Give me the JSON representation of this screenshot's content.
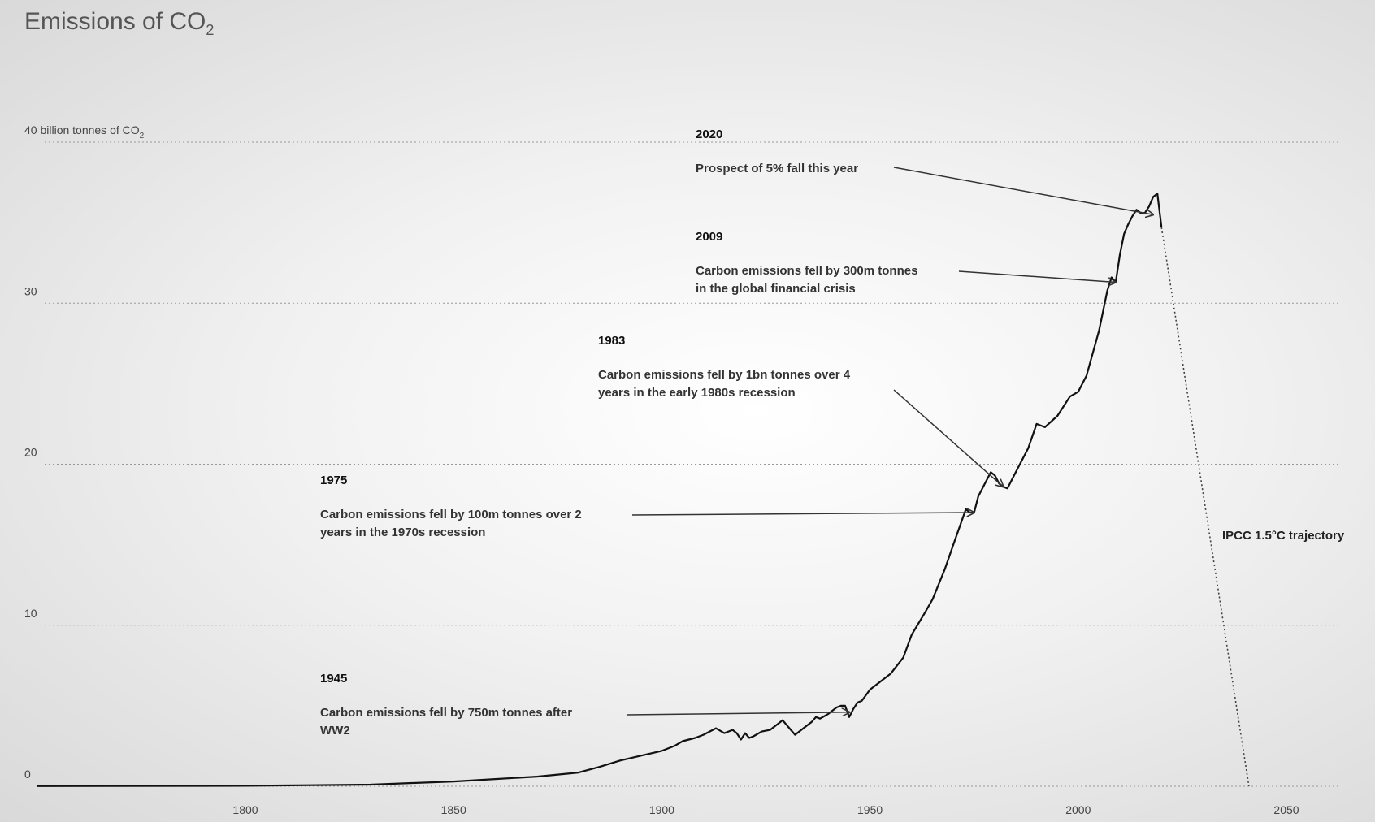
{
  "chart_data": {
    "type": "line",
    "title": "Emissions of CO",
    "title_sub": "2",
    "ylabel_top": "40 billion tonnes of CO",
    "ylabel_top_sub": "2",
    "ylim": [
      0,
      40
    ],
    "xlim": [
      1750,
      2065
    ],
    "grid": "horizontal dotted",
    "y_ticks": [
      {
        "value": 0,
        "label": "0"
      },
      {
        "value": 10,
        "label": "10"
      },
      {
        "value": 20,
        "label": "20"
      },
      {
        "value": 30,
        "label": "30"
      }
    ],
    "x_ticks": [
      {
        "value": 1800,
        "label": "1800"
      },
      {
        "value": 1850,
        "label": "1850"
      },
      {
        "value": 1900,
        "label": "1900"
      },
      {
        "value": 1950,
        "label": "1950"
      },
      {
        "value": 2000,
        "label": "2000"
      },
      {
        "value": 2050,
        "label": "2050"
      }
    ],
    "series": [
      {
        "x": [
          1750,
          1800,
          1830,
          1840,
          1850,
          1860,
          1870,
          1880,
          1885,
          1890,
          1895,
          1900,
          1903,
          1905,
          1908,
          1910,
          1913,
          1915,
          1917,
          1918,
          1919,
          1920,
          1921,
          1922,
          1924,
          1926,
          1928,
          1929,
          1930,
          1931,
          1932,
          1934,
          1936,
          1937,
          1938,
          1940,
          1941,
          1942,
          1943,
          1944,
          1945,
          1946,
          1947,
          1948,
          1950,
          1952,
          1955,
          1958,
          1960,
          1963,
          1965,
          1968,
          1970,
          1973,
          1974,
          1975,
          1976,
          1977,
          1979,
          1980,
          1981,
          1982,
          1983,
          1985,
          1988,
          1990,
          1992,
          1995,
          1998,
          2000,
          2002,
          2005,
          2007,
          2008,
          2009,
          2010,
          2011,
          2012,
          2013,
          2014,
          2015,
          2016,
          2017,
          2018,
          2019,
          2020
        ],
        "y": [
          0.01,
          0.03,
          0.1,
          0.2,
          0.3,
          0.45,
          0.6,
          0.85,
          1.2,
          1.6,
          1.9,
          2.2,
          2.5,
          2.8,
          3.0,
          3.2,
          3.6,
          3.3,
          3.5,
          3.3,
          2.9,
          3.3,
          3.0,
          3.1,
          3.4,
          3.5,
          3.9,
          4.1,
          3.8,
          3.5,
          3.2,
          3.6,
          4.0,
          4.3,
          4.2,
          4.5,
          4.7,
          4.9,
          5.0,
          5.0,
          4.3,
          4.8,
          5.2,
          5.3,
          6.0,
          6.4,
          7.0,
          8.0,
          9.4,
          10.7,
          11.6,
          13.5,
          15.0,
          17.2,
          17.0,
          17.0,
          18.0,
          18.5,
          19.5,
          19.3,
          18.8,
          18.6,
          18.5,
          19.5,
          21.0,
          22.5,
          22.3,
          23.0,
          24.2,
          24.5,
          25.5,
          28.3,
          30.8,
          31.6,
          31.3,
          33.0,
          34.3,
          34.9,
          35.4,
          35.8,
          35.6,
          35.6,
          36.0,
          36.6,
          36.8,
          34.7
        ]
      },
      {
        "name": "IPCC 1.5°C trajectory",
        "x": [
          2020,
          2041
        ],
        "y": [
          34.7,
          0
        ]
      }
    ],
    "annotations": [
      {
        "year": "2020",
        "lines": [
          "Prospect of 5% fall this year"
        ]
      },
      {
        "year": "2009",
        "lines": [
          "Carbon emissions fell by 300m tonnes",
          "in the global financial crisis"
        ]
      },
      {
        "year": "1983",
        "lines": [
          "Carbon emissions fell by 1bn tonnes over 4",
          "years in the early 1980s recession"
        ]
      },
      {
        "year": "1975",
        "lines": [
          "Carbon emissions fell by 100m tonnes over 2",
          "years in the 1970s recession"
        ]
      },
      {
        "year": "1945",
        "lines": [
          "Carbon emissions fell by 750m tonnes after",
          "WW2"
        ]
      }
    ],
    "trajectory_label": "IPCC 1.5°C trajectory"
  }
}
